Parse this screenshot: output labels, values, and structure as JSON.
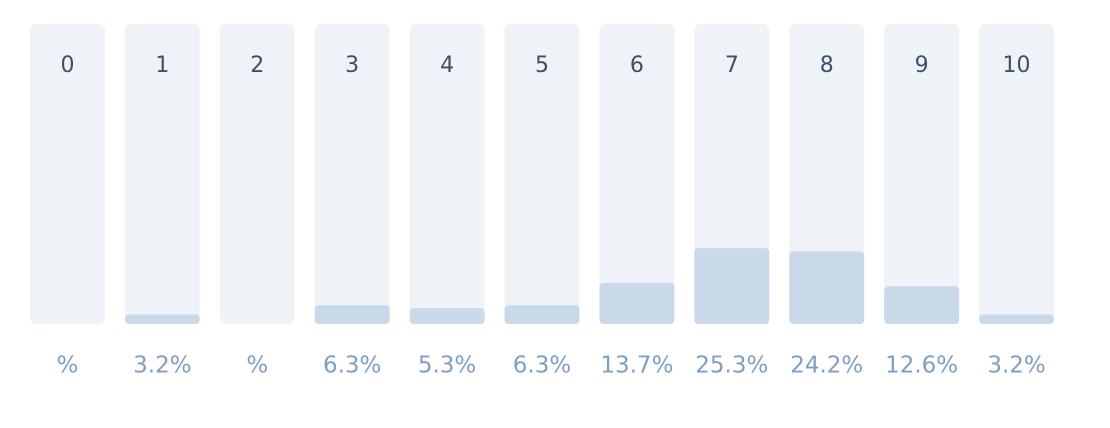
{
  "chart_data": {
    "type": "bar",
    "categories": [
      "0",
      "1",
      "2",
      "3",
      "4",
      "5",
      "6",
      "7",
      "8",
      "9",
      "10"
    ],
    "values": [
      0,
      3.2,
      0,
      6.3,
      5.3,
      6.3,
      13.7,
      25.3,
      24.2,
      12.6,
      3.2
    ],
    "value_labels": [
      "%",
      "3.2%",
      "%",
      "6.3%",
      "5.3%",
      "6.3%",
      "13.7%",
      "25.3%",
      "24.2%",
      "12.6%",
      "3.2%"
    ],
    "ylim": [
      0,
      100
    ],
    "color": "#c9d9ea"
  }
}
